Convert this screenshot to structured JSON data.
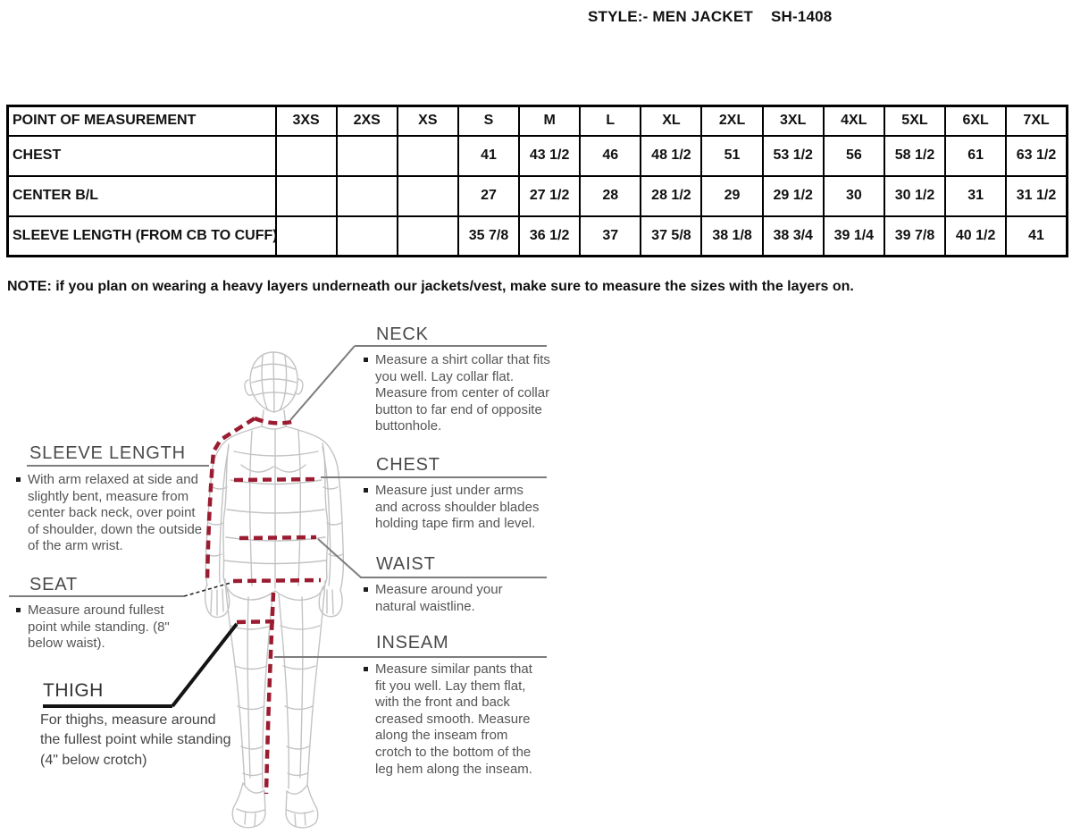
{
  "title": {
    "style_label": "STYLE:- MEN JACKET",
    "style_code": "SH-1408"
  },
  "table": {
    "header": [
      "POINT OF MEASUREMENT",
      "3XS",
      "2XS",
      "XS",
      "S",
      "M",
      "L",
      "XL",
      "2XL",
      "3XL",
      "4XL",
      "5XL",
      "6XL",
      "7XL"
    ],
    "rows": [
      {
        "label": "CHEST",
        "values": [
          "",
          "",
          "",
          "41",
          "43 1/2",
          "46",
          "48 1/2",
          "51",
          "53 1/2",
          "56",
          "58 1/2",
          "61",
          "63 1/2"
        ]
      },
      {
        "label": "CENTER B/L",
        "values": [
          "",
          "",
          "",
          "27",
          "27 1/2",
          "28",
          "28 1/2",
          "29",
          "29 1/2",
          "30",
          "30 1/2",
          "31",
          "31 1/2"
        ]
      },
      {
        "label": "SLEEVE LENGTH (FROM CB TO CUFF)",
        "values": [
          "",
          "",
          "",
          "35 7/8",
          "36 1/2",
          "37",
          "37 5/8",
          "38 1/8",
          "38 3/4",
          "39 1/4",
          "39 7/8",
          "40 1/2",
          "41"
        ]
      }
    ]
  },
  "note": "NOTE: if you plan on wearing a heavy layers underneath our jackets/vest, make sure to measure the sizes with the layers on.",
  "measurements": {
    "neck": {
      "heading": "NECK",
      "description": "Measure a shirt collar that fits you well. Lay collar flat. Measure from center of collar button to far end of opposite buttonhole."
    },
    "sleeve": {
      "heading": "SLEEVE LENGTH",
      "description": "With arm relaxed at side and slightly bent, measure from center back neck, over point of shoulder, down the outside of the arm wrist."
    },
    "chest": {
      "heading": "CHEST",
      "description": "Measure just under arms and across shoulder blades holding tape firm and level."
    },
    "seat": {
      "heading": "SEAT",
      "description": "Measure around fullest point while standing. (8\" below waist)."
    },
    "waist": {
      "heading": "WAIST",
      "description": "Measure around your natural waistline."
    },
    "thigh": {
      "heading": "THIGH",
      "description": "For thighs, measure around the fullest point while standing (4\" below crotch)"
    },
    "inseam": {
      "heading": "INSEAM",
      "description": "Measure similar pants that fit you well. Lay them flat, with the front and back creased smooth. Measure along the inseam from crotch to the bottom of the leg hem along the inseam."
    }
  },
  "colors": {
    "dash_red": "#9b1c31",
    "figure_gray": "#c3c3c3",
    "connector_gray": "#7d7d7d",
    "heading_gray": "#4a4a4a"
  }
}
